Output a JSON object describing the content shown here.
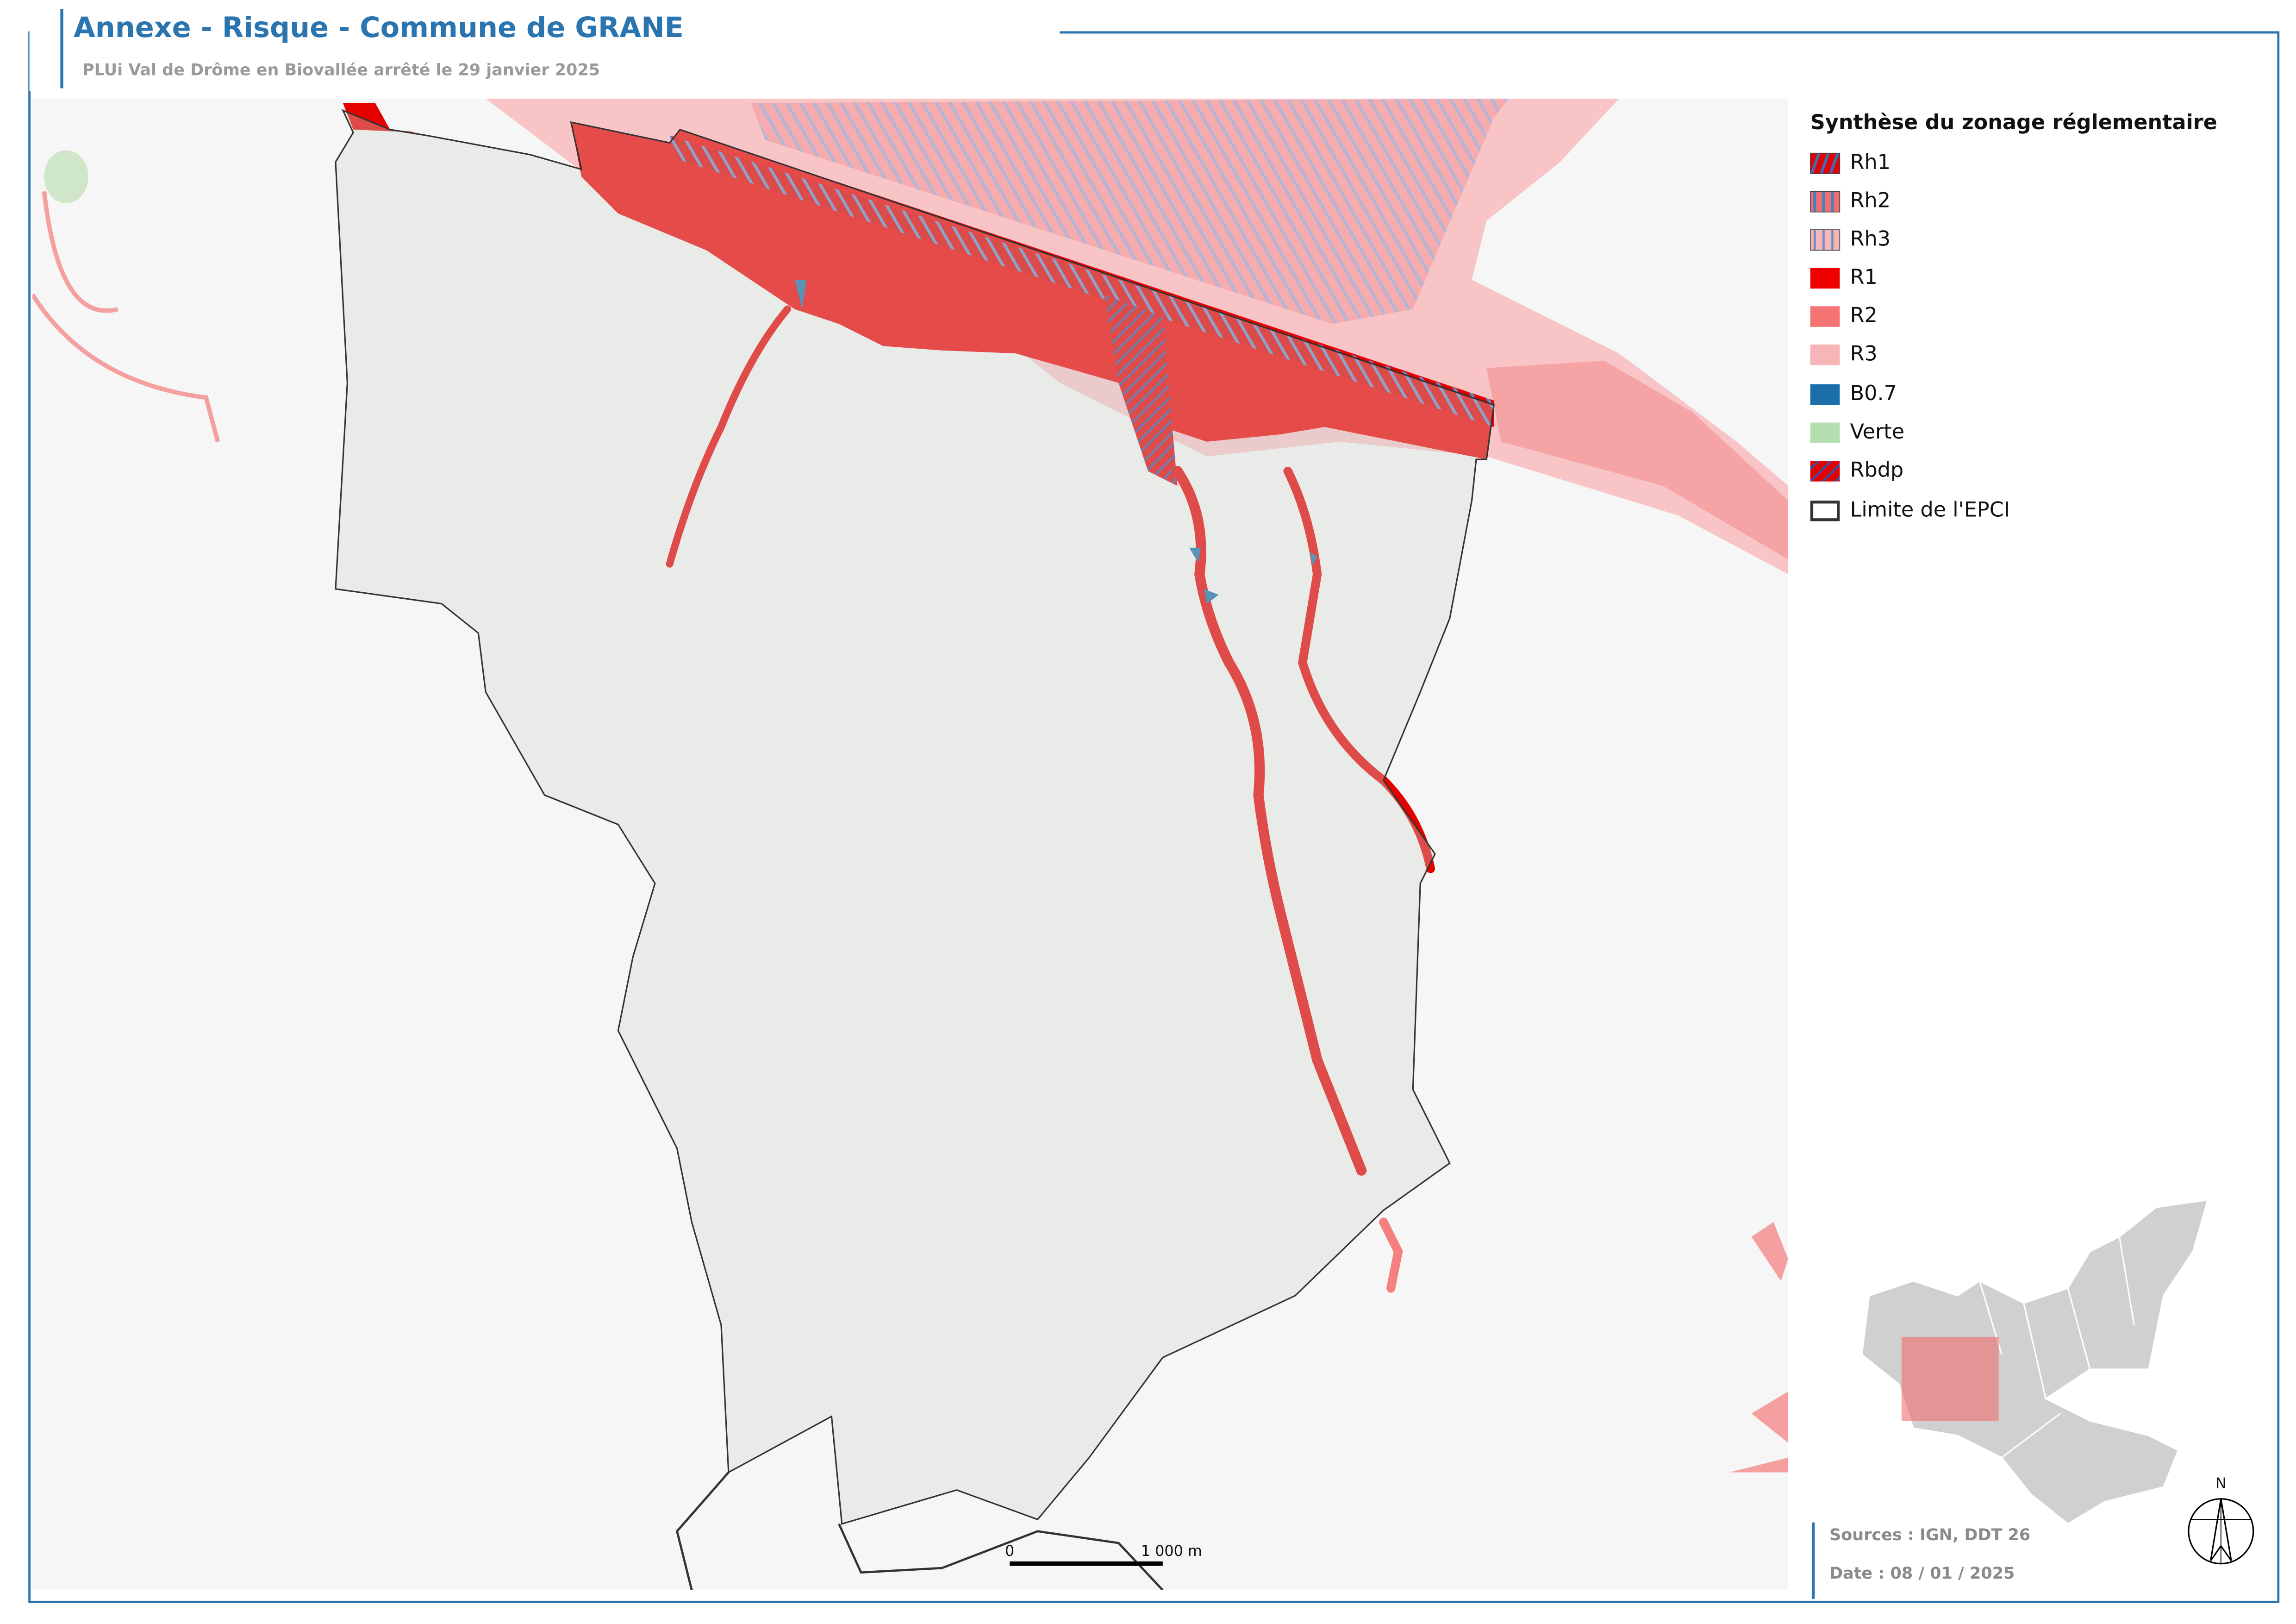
{
  "header": {
    "title": "Annexe - Risque - Commune de GRANE",
    "subtitle": "PLUi Val de Drôme en Biovallée arrêté le 29 janvier 2025"
  },
  "legend": {
    "title": "Synthèse du zonage réglementaire",
    "items": [
      "Rh1",
      "Rh2",
      "Rh3",
      "R1",
      "R2",
      "R3",
      "B0.7",
      "Verte",
      "Rbdp",
      "Limite de l'EPCI"
    ]
  },
  "scale_bar": {
    "start": "0",
    "end": "1 000 m"
  },
  "north": "N",
  "footer": {
    "sources": "Sources : IGN, DDT 26",
    "date": "Date : 08 / 01 / 2025"
  }
}
